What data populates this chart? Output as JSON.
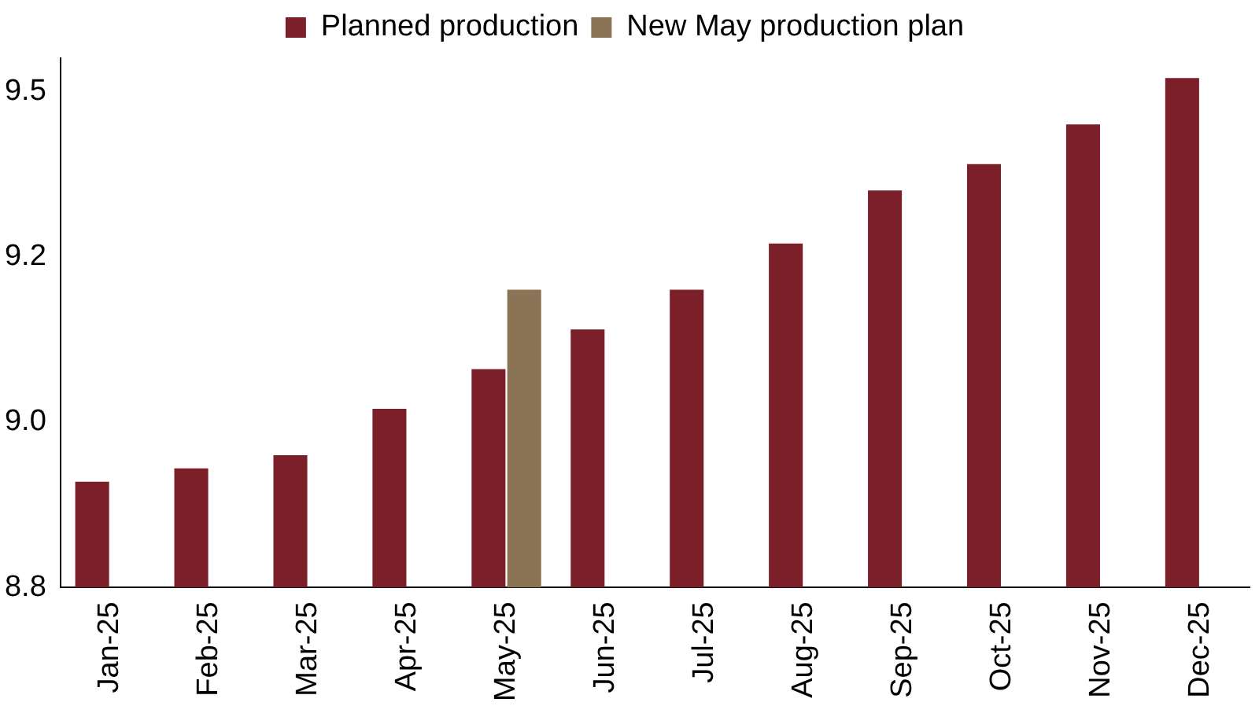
{
  "chart_data": {
    "type": "bar",
    "categories": [
      "Jan-25",
      "Feb-25",
      "Mar-25",
      "Apr-25",
      "May-25",
      "Jun-25",
      "Jul-25",
      "Aug-25",
      "Sep-25",
      "Oct-25",
      "Nov-25",
      "Dec-25"
    ],
    "series": [
      {
        "name": "Planned production",
        "color": "#7b2029",
        "values": [
          8.91,
          8.93,
          8.95,
          9.02,
          9.08,
          9.14,
          9.2,
          9.27,
          9.35,
          9.39,
          9.45,
          9.52
        ]
      },
      {
        "name": "New May production plan",
        "color": "#8b7355",
        "values": [
          null,
          null,
          null,
          null,
          9.2,
          null,
          null,
          null,
          null,
          null,
          null,
          null
        ]
      }
    ],
    "ylim": [
      8.75,
      9.55
    ],
    "yticks": [
      {
        "value": 8.75,
        "label": "8.8"
      },
      {
        "value": 9.0,
        "label": "9.0"
      },
      {
        "value": 9.25,
        "label": "9.2"
      },
      9.5
    ],
    "grid": false,
    "legend": "top"
  }
}
